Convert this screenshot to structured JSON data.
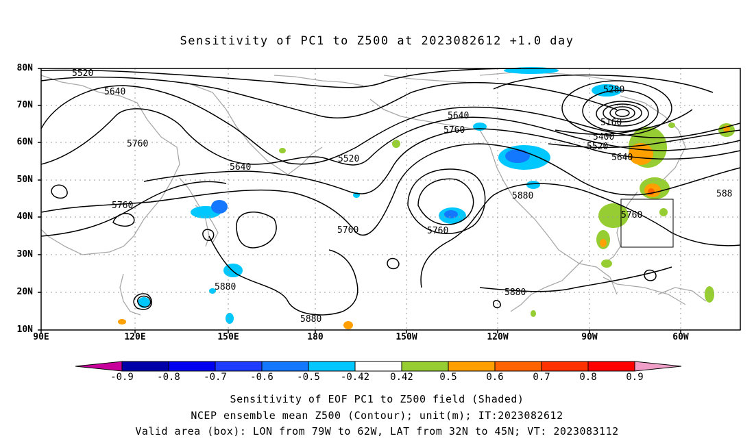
{
  "title": "Sensitivity of PC1 to Z500 at 2023082612 +1.0 day",
  "lat_labels": [
    "80N",
    "70N",
    "60N",
    "50N",
    "40N",
    "30N",
    "20N",
    "10N"
  ],
  "lon_labels": [
    "90E",
    "120E",
    "150E",
    "180",
    "150W",
    "120W",
    "90W",
    "60W"
  ],
  "contour_labels": [
    {
      "text": "5520"
    },
    {
      "text": "5640"
    },
    {
      "text": "5760"
    },
    {
      "text": "5640"
    },
    {
      "text": "5760"
    },
    {
      "text": "5520"
    },
    {
      "text": "5640"
    },
    {
      "text": "5760"
    },
    {
      "text": "5760"
    },
    {
      "text": "5880"
    },
    {
      "text": "5880"
    },
    {
      "text": "5880"
    },
    {
      "text": "5760"
    },
    {
      "text": "5880"
    },
    {
      "text": "5280"
    },
    {
      "text": "5160"
    },
    {
      "text": "5400"
    },
    {
      "text": "5520"
    },
    {
      "text": "5640"
    },
    {
      "text": "5760"
    },
    {
      "text": "588"
    }
  ],
  "colorbar": {
    "labels": [
      "-0.9",
      "-0.8",
      "-0.7",
      "-0.6",
      "-0.5",
      "-0.42",
      "0.42",
      "0.5",
      "0.6",
      "0.7",
      "0.8",
      "0.9"
    ],
    "colors": [
      "#0000a8",
      "#0000f0",
      "#1e3cff",
      "#1478ff",
      "#00c8ff",
      "#ffffff",
      "#96cd32",
      "#ffa000",
      "#ff6400",
      "#ff3200",
      "#ff0000"
    ],
    "low_extend_color": "#c8009b",
    "high_extend_color": "#f0a0c8"
  },
  "valid_box": {
    "lon_west": -79,
    "lon_east": -62,
    "lat_south": 32,
    "lat_north": 45
  },
  "captions": [
    "Sensitivity of EOF PC1 to Z500 field (Shaded)",
    "NCEP ensemble mean Z500 (Contour); unit(m); IT:2023082612",
    "Valid area (box): LON from 79W to 62W, LAT from 32N to 45N; VT: 2023083112"
  ]
}
